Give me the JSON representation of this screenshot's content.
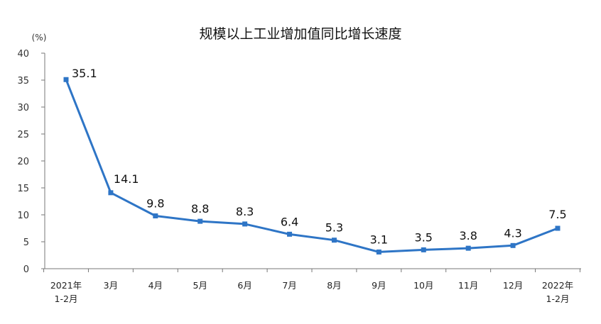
{
  "chart_data": {
    "type": "line",
    "title": "规模以上工业增加值同比增长速度",
    "unit": "(%)",
    "categories": [
      [
        "2021年",
        "1-2月"
      ],
      [
        "3月"
      ],
      [
        "4月"
      ],
      [
        "5月"
      ],
      [
        "6月"
      ],
      [
        "7月"
      ],
      [
        "8月"
      ],
      [
        "9月"
      ],
      [
        "10月"
      ],
      [
        "11月"
      ],
      [
        "12月"
      ],
      [
        "2022年",
        "1-2月"
      ]
    ],
    "series": [
      {
        "values": [
          35.1,
          14.1,
          9.8,
          8.8,
          8.3,
          6.4,
          5.3,
          3.1,
          3.5,
          3.8,
          4.3,
          7.5
        ]
      }
    ],
    "data_labels": [
      "35.1",
      "14.1",
      "9.8",
      "8.8",
      "8.3",
      "6.4",
      "5.3",
      "3.1",
      "3.5",
      "3.8",
      "4.3",
      "7.5"
    ],
    "yticks": [
      0,
      5,
      10,
      15,
      20,
      25,
      30,
      35,
      40
    ],
    "ylim": [
      0,
      40
    ],
    "grid": false,
    "line_color": "#2E75C6"
  }
}
